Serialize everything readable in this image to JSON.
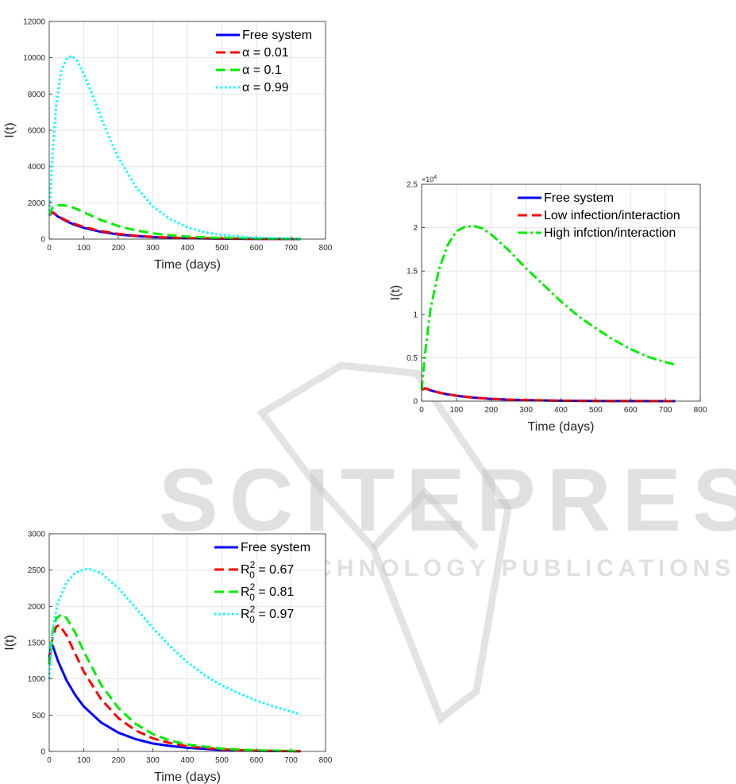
{
  "watermark": {
    "title": "SCITEPRESS",
    "subtitle": "SCIENCE AND TECHNOLOGY PUBLICATIONS"
  },
  "chart_data": [
    {
      "id": "chart-alpha",
      "type": "line",
      "xlabel": "Time (days)",
      "ylabel": "I(t)",
      "xlim": [
        0,
        800
      ],
      "ylim": [
        0,
        12000
      ],
      "xticks": [
        0,
        100,
        200,
        300,
        400,
        500,
        600,
        700,
        800
      ],
      "yticks": [
        0,
        2000,
        4000,
        6000,
        8000,
        10000,
        12000
      ],
      "ytick_labels": [
        "0",
        "2000",
        "4000",
        "6000",
        "8000",
        "10000",
        "12000"
      ],
      "grid": true,
      "legend_position": "top-right",
      "series": [
        {
          "name": "Free system",
          "color": "#0000ff",
          "style": "solid",
          "x": [
            0,
            10,
            25,
            50,
            75,
            100,
            150,
            200,
            250,
            300,
            350,
            400,
            500,
            600,
            728
          ],
          "y": [
            1300,
            1470,
            1250,
            980,
            780,
            620,
            400,
            260,
            170,
            110,
            75,
            50,
            20,
            8,
            2
          ]
        },
        {
          "name": "α = 0.01",
          "color": "#ff0000",
          "style": "dashed",
          "x": [
            0,
            10,
            25,
            50,
            75,
            100,
            150,
            200,
            250,
            300,
            350,
            400,
            500,
            600,
            728
          ],
          "y": [
            1300,
            1480,
            1280,
            1020,
            830,
            670,
            440,
            290,
            190,
            125,
            85,
            55,
            25,
            10,
            3
          ]
        },
        {
          "name": "α = 0.1",
          "color": "#00ee00",
          "style": "dashed",
          "x": [
            0,
            10,
            25,
            40,
            60,
            80,
            100,
            150,
            200,
            250,
            300,
            350,
            400,
            500,
            600,
            728
          ],
          "y": [
            1300,
            1750,
            1860,
            1870,
            1800,
            1650,
            1480,
            1050,
            720,
            480,
            320,
            210,
            140,
            60,
            25,
            8
          ]
        },
        {
          "name": "α = 0.99",
          "color": "#00ffff",
          "style": "dotted",
          "x": [
            0,
            10,
            20,
            35,
            50,
            65,
            80,
            100,
            125,
            150,
            175,
            200,
            250,
            300,
            350,
            400,
            450,
            500,
            600,
            728
          ],
          "y": [
            1300,
            4800,
            7300,
            9300,
            9950,
            10100,
            9850,
            9100,
            7950,
            6700,
            5550,
            4500,
            2900,
            1800,
            1100,
            650,
            380,
            220,
            70,
            15
          ]
        }
      ]
    },
    {
      "id": "chart-infection",
      "type": "line",
      "xlabel": "Time (days)",
      "ylabel": "I(t)",
      "exponent_label": "×10",
      "exponent_power": "4",
      "xlim": [
        0,
        800
      ],
      "ylim": [
        0,
        25000
      ],
      "xticks": [
        0,
        100,
        200,
        300,
        400,
        500,
        600,
        700,
        800
      ],
      "yticks": [
        0,
        5000,
        10000,
        15000,
        20000,
        25000
      ],
      "ytick_labels": [
        "0",
        "0.5",
        "1",
        "1.5",
        "2",
        "2.5"
      ],
      "grid": true,
      "legend_position": "top-right",
      "series": [
        {
          "name": "Free system",
          "color": "#0000ff",
          "style": "solid",
          "x": [
            0,
            10,
            25,
            50,
            75,
            100,
            150,
            200,
            250,
            300,
            400,
            500,
            600,
            728
          ],
          "y": [
            1300,
            1470,
            1250,
            980,
            780,
            620,
            400,
            260,
            170,
            110,
            50,
            20,
            8,
            2
          ]
        },
        {
          "name": "Low infection/interaction",
          "color": "#ff0000",
          "style": "dashed",
          "x": [
            0,
            10,
            25,
            50,
            75,
            100,
            150,
            200,
            250,
            300,
            400,
            500,
            600,
            728
          ],
          "y": [
            1300,
            1480,
            1270,
            1000,
            800,
            640,
            410,
            270,
            175,
            115,
            52,
            22,
            9,
            3
          ]
        },
        {
          "name": "High infction/interaction",
          "color": "#00ee00",
          "style": "dashdot",
          "x": [
            0,
            10,
            25,
            50,
            75,
            100,
            125,
            150,
            175,
            200,
            250,
            300,
            350,
            400,
            450,
            500,
            550,
            600,
            650,
            700,
            728
          ],
          "y": [
            1300,
            5500,
            10500,
            15200,
            18000,
            19600,
            20100,
            20200,
            19900,
            19200,
            17400,
            15300,
            13400,
            11500,
            9800,
            8400,
            7100,
            6000,
            5100,
            4500,
            4200
          ]
        }
      ]
    },
    {
      "id": "chart-r0",
      "type": "line",
      "xlabel": "Time (days)",
      "ylabel": "I(t)",
      "xlim": [
        0,
        800
      ],
      "ylim": [
        0,
        3000
      ],
      "xticks": [
        0,
        100,
        200,
        300,
        400,
        500,
        600,
        700,
        800
      ],
      "yticks": [
        0,
        500,
        1000,
        1500,
        2000,
        2500,
        3000
      ],
      "ytick_labels": [
        "0",
        "500",
        "1000",
        "1500",
        "2000",
        "2500",
        "3000"
      ],
      "grid": true,
      "legend_position": "top-right",
      "series": [
        {
          "name": "Free system",
          "color": "#0000ff",
          "style": "solid",
          "x": [
            0,
            5,
            10,
            25,
            50,
            75,
            100,
            150,
            200,
            250,
            300,
            350,
            400,
            500,
            600,
            728
          ],
          "y": [
            1300,
            1430,
            1460,
            1250,
            980,
            780,
            620,
            400,
            260,
            170,
            110,
            75,
            50,
            20,
            8,
            2
          ]
        },
        {
          "name": "R",
          "sup": "2",
          "sub": "0",
          "value_text": " = 0.67",
          "color": "#ff0000",
          "style": "dashed",
          "x": [
            0,
            10,
            20,
            30,
            50,
            75,
            100,
            150,
            200,
            250,
            300,
            350,
            400,
            500,
            600,
            728
          ],
          "y": [
            1250,
            1580,
            1720,
            1740,
            1600,
            1350,
            1100,
            720,
            460,
            290,
            180,
            115,
            70,
            28,
            10,
            3
          ]
        },
        {
          "name": "R",
          "sup": "2",
          "sub": "0",
          "value_text": " = 0.81",
          "color": "#00ee00",
          "style": "dashed",
          "x": [
            0,
            10,
            20,
            35,
            50,
            75,
            100,
            150,
            200,
            250,
            300,
            350,
            400,
            500,
            600,
            728
          ],
          "y": [
            1200,
            1650,
            1830,
            1890,
            1840,
            1640,
            1380,
            920,
            600,
            380,
            240,
            150,
            95,
            38,
            15,
            5
          ]
        },
        {
          "name": "R",
          "sup": "2",
          "sub": "0",
          "value_text": " = 0.97",
          "color": "#00ffff",
          "style": "dotted",
          "x": [
            0,
            10,
            25,
            50,
            75,
            100,
            120,
            150,
            200,
            250,
            300,
            350,
            400,
            450,
            500,
            550,
            600,
            650,
            700,
            728
          ],
          "y": [
            1000,
            1700,
            2050,
            2330,
            2460,
            2510,
            2510,
            2460,
            2250,
            1980,
            1700,
            1450,
            1230,
            1050,
            910,
            800,
            700,
            620,
            550,
            510
          ]
        }
      ]
    }
  ]
}
